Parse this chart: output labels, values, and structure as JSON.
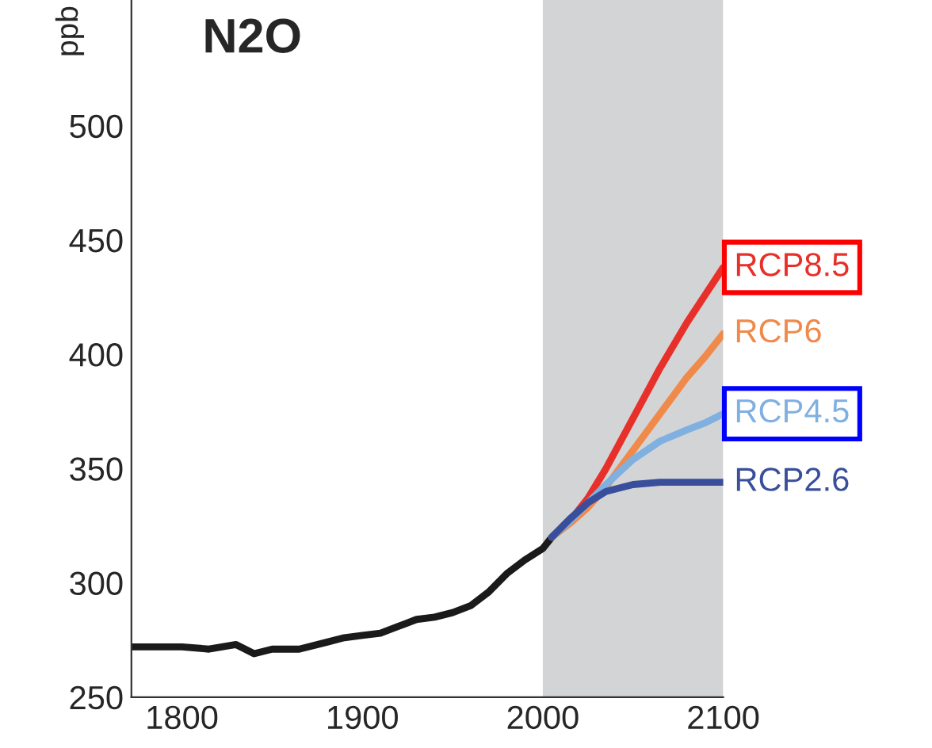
{
  "chart_data": {
    "type": "line",
    "title": "N2O",
    "ylabel": "ppb",
    "xlim": [
      1772,
      2100
    ],
    "xticks": [
      1800,
      1900,
      2000,
      2100
    ],
    "ylim": [
      250,
      555
    ],
    "yticks": [
      250,
      300,
      350,
      400,
      450,
      500
    ],
    "grid": false,
    "legend": false,
    "line_style": "solid",
    "marker": "none",
    "bands": [
      {
        "axis": "x",
        "from": 2000,
        "to": 2100,
        "color": "#d3d4d6"
      }
    ],
    "series": [
      {
        "color": "#1a1a1a",
        "x": [
          1772,
          1785,
          1800,
          1815,
          1830,
          1840,
          1850,
          1865,
          1880,
          1890,
          1900,
          1910,
          1920,
          1930,
          1940,
          1950,
          1960,
          1970,
          1980,
          1990,
          2000,
          2005
        ],
        "values": [
          272,
          272,
          272,
          271,
          273,
          269,
          271,
          271,
          274,
          276,
          277,
          278,
          281,
          284,
          285,
          287,
          290,
          296,
          304,
          310,
          315,
          320
        ]
      },
      {
        "name": "RCP8.5",
        "color": "#e8302a",
        "x": [
          2005,
          2015,
          2025,
          2035,
          2050,
          2065,
          2080,
          2090,
          2100
        ],
        "values": [
          320,
          327,
          337,
          350,
          372,
          394,
          414,
          426,
          438
        ]
      },
      {
        "name": "RCP6",
        "color": "#f08a4b",
        "x": [
          2005,
          2015,
          2025,
          2035,
          2050,
          2065,
          2080,
          2090,
          2100
        ],
        "values": [
          320,
          326,
          333,
          342,
          358,
          374,
          390,
          399,
          409
        ]
      },
      {
        "name": "RCP4.5",
        "color": "#7fb0e0",
        "x": [
          2005,
          2015,
          2025,
          2035,
          2050,
          2065,
          2080,
          2090,
          2100
        ],
        "values": [
          320,
          327,
          335,
          343,
          354,
          362,
          367,
          370,
          374
        ]
      },
      {
        "name": "RCP2.6",
        "color": "#3a4f9c",
        "x": [
          2005,
          2015,
          2025,
          2035,
          2050,
          2065,
          2080,
          2090,
          2100
        ],
        "values": [
          320,
          328,
          335,
          340,
          343,
          344,
          344,
          344,
          344
        ]
      }
    ]
  }
}
